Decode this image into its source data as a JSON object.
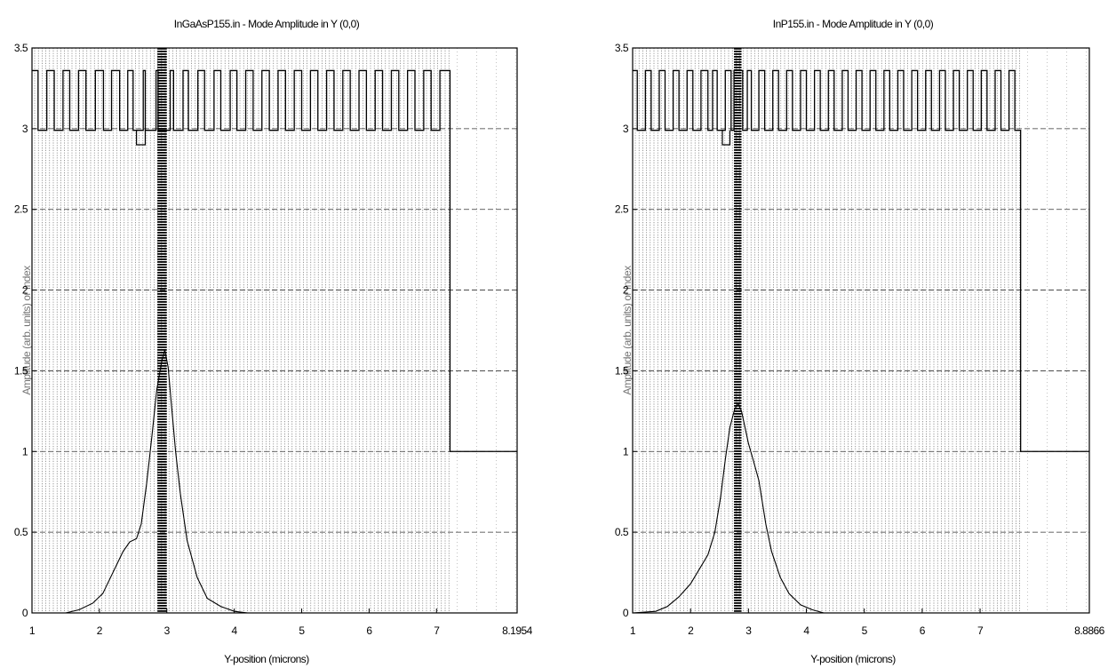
{
  "chart_data": [
    {
      "type": "line",
      "title": "InGaAsP155.in - Mode Amplitude in Y (0,0)",
      "xlabel": "Y-position (microns)",
      "ylabel": "Amplitude (arb. units) or Index",
      "xlim": [
        1,
        8.1954
      ],
      "ylim": [
        0,
        3.5
      ],
      "x_tick_labels": [
        "1",
        "2",
        "3",
        "4",
        "5",
        "6",
        "7",
        "8.1954"
      ],
      "y_tick_labels": [
        "0",
        "0.5",
        "1",
        "1.5",
        "2",
        "2.5",
        "3",
        "3.5"
      ],
      "grid": true,
      "index_profile": {
        "x_start": 1.0,
        "x_end": 7.2,
        "high_index": 3.36,
        "low_index": 2.99,
        "layer_edges": [
          1.09,
          1.22,
          1.33,
          1.46,
          1.56,
          1.69,
          1.8,
          1.94,
          2.06,
          2.18,
          2.3,
          2.42,
          2.5,
          2.65,
          2.68,
          2.84,
          2.87,
          3.05,
          3.1,
          3.24,
          3.32,
          3.46,
          3.56,
          3.7,
          3.8,
          3.94,
          4.04,
          4.17,
          4.28,
          4.41,
          4.52,
          4.65,
          4.76,
          4.89,
          5.0,
          5.13,
          5.24,
          5.37,
          5.48,
          5.61,
          5.72,
          5.85,
          5.96,
          6.09,
          6.2,
          6.33,
          6.44,
          6.57,
          6.68,
          6.81,
          6.92,
          7.05,
          7.2
        ],
        "cladding_index_after": 1.0,
        "active_region": [
          2.86,
          3.0
        ]
      },
      "series": [
        {
          "x": [
            1.0,
            1.5,
            1.7,
            1.9,
            2.05,
            2.2,
            2.35,
            2.45,
            2.55,
            2.62,
            2.7,
            2.78,
            2.85,
            2.92,
            2.97,
            3.02,
            3.07,
            3.13,
            3.2,
            3.3,
            3.45,
            3.6,
            3.8,
            4.0,
            4.2,
            5.0
          ],
          "values": [
            0.0,
            0.0,
            0.02,
            0.06,
            0.12,
            0.25,
            0.38,
            0.44,
            0.46,
            0.55,
            0.8,
            1.1,
            1.38,
            1.55,
            1.63,
            1.52,
            1.28,
            1.0,
            0.74,
            0.45,
            0.22,
            0.09,
            0.04,
            0.01,
            0.0,
            0.0
          ]
        }
      ]
    },
    {
      "type": "line",
      "title": "InP155.in - Mode Amplitude in Y (0,0)",
      "xlabel": "Y-position (microns)",
      "ylabel": "Amplitude (arb. units) or Index",
      "xlim": [
        1,
        8.8866
      ],
      "ylim": [
        0,
        3.5
      ],
      "x_tick_labels": [
        "1",
        "2",
        "3",
        "4",
        "5",
        "6",
        "7",
        "8.8866"
      ],
      "y_tick_labels": [
        "0",
        "0.5",
        "1",
        "1.5",
        "2",
        "2.5",
        "3",
        "3.5"
      ],
      "grid": true,
      "index_profile": {
        "x_start": 1.0,
        "x_end": 7.7,
        "high_index": 3.36,
        "low_index": 2.99,
        "layer_edges": [
          1.08,
          1.22,
          1.32,
          1.46,
          1.56,
          1.7,
          1.8,
          1.94,
          2.04,
          2.18,
          2.3,
          2.38,
          2.46,
          2.6,
          2.7,
          2.75,
          2.9,
          2.98,
          3.05,
          3.18,
          3.28,
          3.42,
          3.52,
          3.66,
          3.76,
          3.9,
          4.0,
          4.14,
          4.24,
          4.38,
          4.48,
          4.62,
          4.72,
          4.86,
          4.96,
          5.1,
          5.2,
          5.34,
          5.44,
          5.58,
          5.68,
          5.82,
          5.92,
          6.06,
          6.16,
          6.3,
          6.4,
          6.54,
          6.64,
          6.78,
          6.88,
          7.02,
          7.12,
          7.26,
          7.36,
          7.5,
          7.6,
          7.7
        ],
        "cladding_index_after": 1.0,
        "active_region": [
          2.75,
          2.88
        ]
      },
      "series": [
        {
          "x": [
            1.0,
            1.4,
            1.6,
            1.8,
            2.0,
            2.15,
            2.3,
            2.42,
            2.52,
            2.6,
            2.68,
            2.76,
            2.82,
            2.88,
            2.94,
            3.0,
            3.08,
            3.18,
            3.3,
            3.4,
            3.55,
            3.7,
            3.9,
            4.1,
            4.3,
            5.0
          ],
          "values": [
            0.0,
            0.01,
            0.04,
            0.1,
            0.18,
            0.27,
            0.36,
            0.5,
            0.72,
            0.95,
            1.15,
            1.26,
            1.3,
            1.25,
            1.15,
            1.05,
            0.95,
            0.82,
            0.55,
            0.38,
            0.22,
            0.12,
            0.05,
            0.02,
            0.0,
            0.0
          ]
        }
      ]
    }
  ]
}
